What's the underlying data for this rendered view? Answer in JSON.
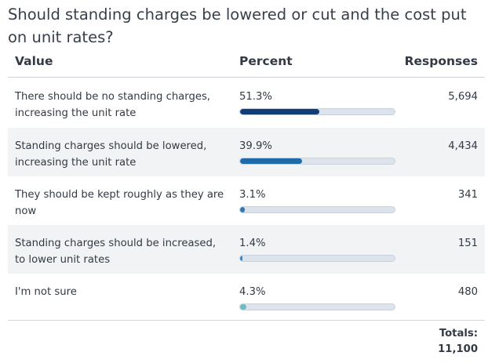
{
  "title": "Should standing charges be lowered or cut and the cost put on unit rates?",
  "columns": {
    "value": "Value",
    "percent": "Percent",
    "responses": "Responses"
  },
  "rows": [
    {
      "label": "There should be no standing charges, increasing the unit rate",
      "percent_text": "51.3%",
      "responses": "5,694",
      "color": "#0f3d7a"
    },
    {
      "label": "Standing charges should be lowered, increasing the unit rate",
      "percent_text": "39.9%",
      "responses": "4,434",
      "color": "#1f6aa8"
    },
    {
      "label": "They should be kept roughly as they are now",
      "percent_text": "3.1%",
      "responses": "341",
      "color": "#2f78b8"
    },
    {
      "label": "Standing charges should be increased, to lower unit rates",
      "percent_text": "1.4%",
      "responses": "151",
      "color": "#3b86c4"
    },
    {
      "label": "I'm not sure",
      "percent_text": "4.3%",
      "responses": "480",
      "color": "#6cbcc0"
    }
  ],
  "totals": {
    "label": "Totals:",
    "value": "11,100"
  },
  "chart_data": {
    "type": "table",
    "title": "Should standing charges be lowered or cut and the cost put on unit rates?",
    "columns": [
      "Value",
      "Percent",
      "Responses"
    ],
    "categories": [
      "There should be no standing charges, increasing the unit rate",
      "Standing charges should be lowered, increasing the unit rate",
      "They should be kept roughly as they are now",
      "Standing charges should be increased, to lower unit rates",
      "I'm not sure"
    ],
    "values": [
      51.3,
      39.9,
      3.1,
      1.4,
      4.3
    ],
    "responses": [
      5694,
      4434,
      341,
      151,
      480
    ],
    "total": 11100
  }
}
